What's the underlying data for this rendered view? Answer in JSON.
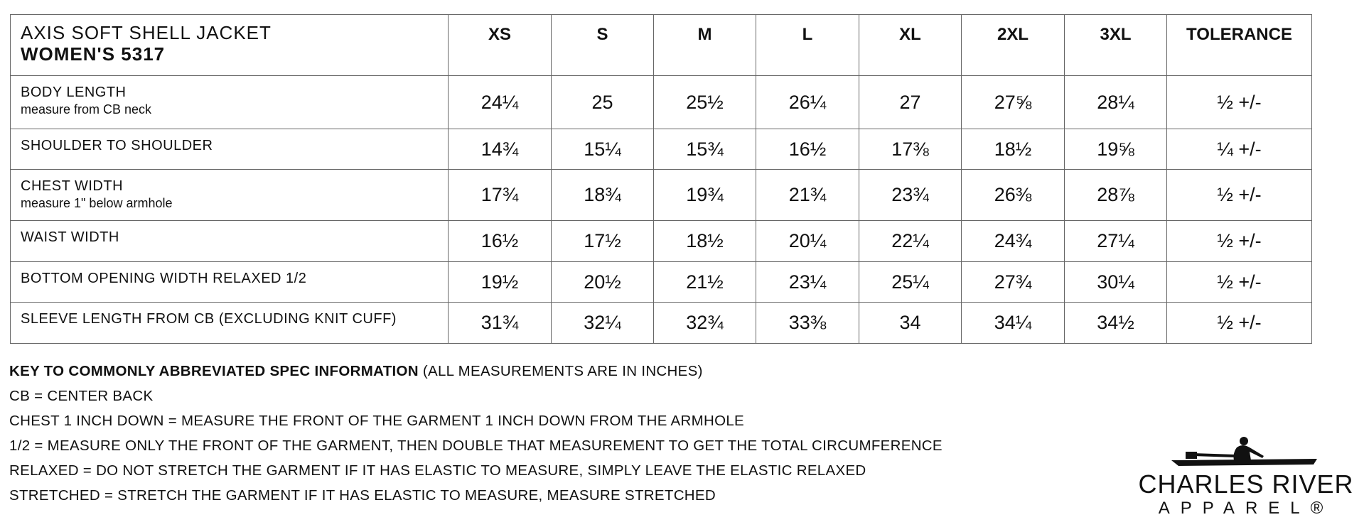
{
  "title": {
    "line1": "AXIS SOFT SHELL JACKET",
    "line2": "WOMEN'S 5317"
  },
  "columns": [
    "XS",
    "S",
    "M",
    "L",
    "XL",
    "2XL",
    "3XL",
    "TOLERANCE"
  ],
  "rows": [
    {
      "label": "BODY LENGTH",
      "sub": "measure from CB neck",
      "values": [
        "24¼",
        "25",
        "25½",
        "26¼",
        "27",
        "27⅝",
        "28¼",
        "½ +/-"
      ]
    },
    {
      "label": "SHOULDER TO SHOULDER",
      "sub": "",
      "values": [
        "14¾",
        "15¼",
        "15¾",
        "16½",
        "17⅜",
        "18½",
        "19⅝",
        "¼ +/-"
      ]
    },
    {
      "label": "CHEST WIDTH",
      "sub": "measure 1\" below armhole",
      "values": [
        "17¾",
        "18¾",
        "19¾",
        "21¾",
        "23¾",
        "26⅜",
        "28⅞",
        "½ +/-"
      ]
    },
    {
      "label": "WAIST WIDTH",
      "sub": "",
      "values": [
        "16½",
        "17½",
        "18½",
        "20¼",
        "22¼",
        "24¾",
        "27¼",
        "½ +/-"
      ]
    },
    {
      "label": "BOTTOM OPENING WIDTH RELAXED 1/2",
      "sub": "",
      "values": [
        "19½",
        "20½",
        "21½",
        "23¼",
        "25¼",
        "27¾",
        "30¼",
        "½ +/-"
      ]
    },
    {
      "label": "SLEEVE LENGTH FROM CB  (EXCLUDING KNIT CUFF)",
      "sub": "",
      "values": [
        "31¾",
        "32¼",
        "32¾",
        "33⅜",
        "34",
        "34¼",
        "34½",
        "½ +/-"
      ]
    }
  ],
  "key": {
    "heading": "KEY TO COMMONLY ABBREVIATED SPEC INFORMATION",
    "heading_note": "(ALL MEASUREMENTS ARE IN INCHES)",
    "lines": [
      "CB = CENTER BACK",
      "CHEST 1 INCH DOWN = MEASURE THE FRONT OF THE GARMENT 1 INCH DOWN FROM THE ARMHOLE",
      "1/2 = MEASURE ONLY THE FRONT OF THE GARMENT, THEN DOUBLE THAT MEASUREMENT TO GET THE TOTAL CIRCUMFERENCE",
      "RELAXED = DO NOT STRETCH THE GARMENT IF IT HAS ELASTIC TO MEASURE, SIMPLY LEAVE THE ELASTIC RELAXED",
      "STRETCHED = STRETCH THE GARMENT IF IT HAS ELASTIC TO MEASURE, MEASURE STRETCHED"
    ]
  },
  "logo": {
    "line1": "CHARLES RIVER",
    "line2": "APPAREL®"
  }
}
